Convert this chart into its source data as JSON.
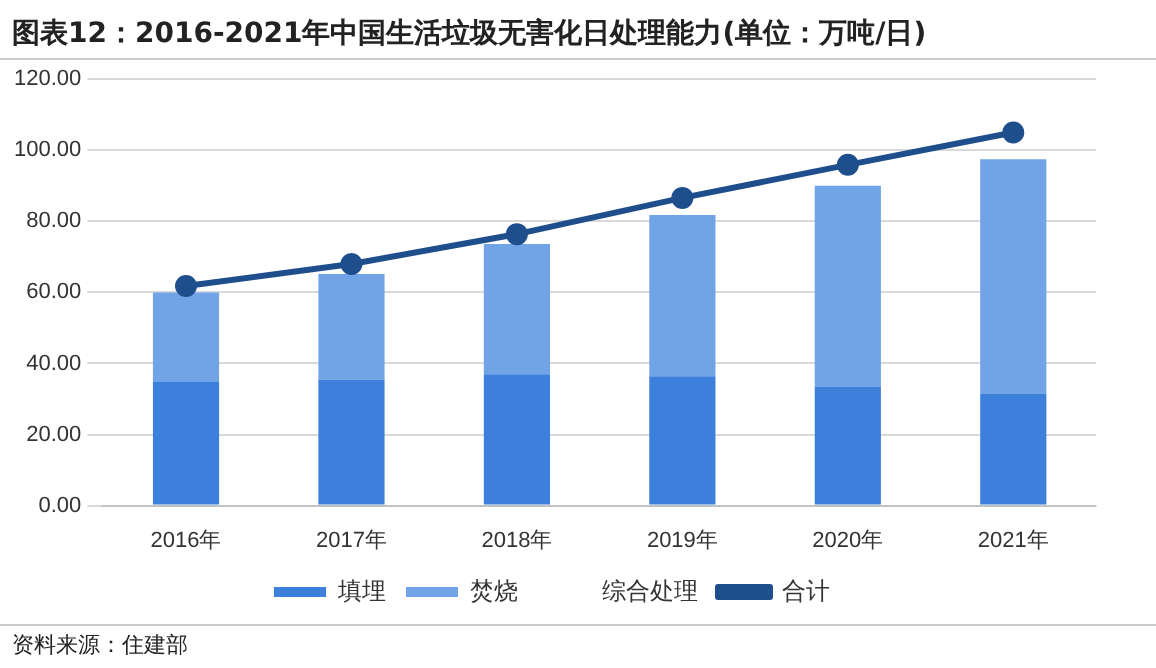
{
  "chart_data": {
    "type": "bar",
    "title": "图表12：2016-2021年中国生活垃圾无害化日处理能力(单位：万吨/日)",
    "stacked": true,
    "categories": [
      "2016年",
      "2017年",
      "2018年",
      "2019年",
      "2020年",
      "2021年"
    ],
    "series": [
      {
        "name": "填埋",
        "color": "#3d80dc",
        "values": [
          34.8,
          35.5,
          37.0,
          36.4,
          33.4,
          31.4
        ]
      },
      {
        "name": "焚烧",
        "color": "#70a4e7",
        "values": [
          25.2,
          29.7,
          36.6,
          45.4,
          56.6,
          66.1
        ]
      },
      {
        "name": "综合处理",
        "values": [
          null,
          null,
          null,
          null,
          null,
          null
        ]
      },
      {
        "name": "合计",
        "type": "line",
        "color": "#1f4e8c",
        "values": [
          61.8,
          68.0,
          76.4,
          86.6,
          95.9,
          105.0
        ]
      }
    ],
    "ylim": [
      0,
      120
    ],
    "yticks": [
      {
        "value": 0,
        "label": "0.00"
      },
      {
        "value": 20,
        "label": "20.00"
      },
      {
        "value": 40,
        "label": "40.00"
      },
      {
        "value": 60,
        "label": "60.00"
      },
      {
        "value": 80,
        "label": "80.00"
      },
      {
        "value": 100,
        "label": "100.00"
      },
      {
        "value": 120,
        "label": "120.00"
      }
    ],
    "grid": "y",
    "legend": "bottom",
    "marker": "circle",
    "annotations": [
      "资料来源：住建部"
    ]
  }
}
